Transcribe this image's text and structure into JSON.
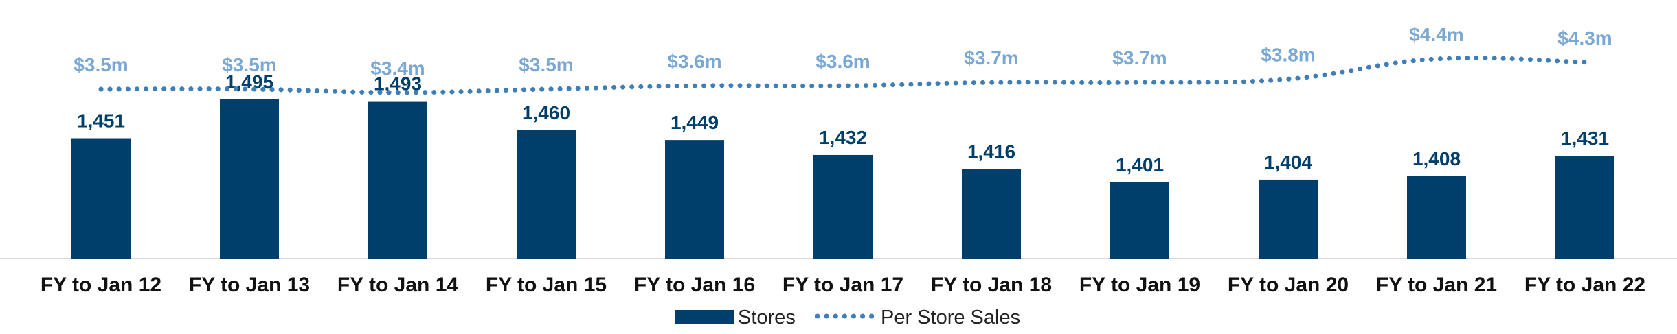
{
  "chart_data": {
    "type": "bar",
    "categories": [
      "FY to Jan 12",
      "FY to Jan 13",
      "FY to Jan 14",
      "FY to Jan 15",
      "FY to Jan 16",
      "FY to Jan 17",
      "FY to Jan 18",
      "FY to Jan 19",
      "FY to Jan 20",
      "FY to Jan 21",
      "FY to Jan 22"
    ],
    "series": [
      {
        "name": "Stores",
        "type": "bar",
        "values": [
          1451,
          1495,
          1493,
          1460,
          1449,
          1432,
          1416,
          1401,
          1404,
          1408,
          1431
        ],
        "labels": [
          "1,451",
          "1,495",
          "1,493",
          "1,460",
          "1,449",
          "1,432",
          "1,416",
          "1,401",
          "1,404",
          "1,408",
          "1,431"
        ],
        "color": "#003f6b"
      },
      {
        "name": "Per Store Sales",
        "type": "line",
        "style": "dotted",
        "values": [
          3.5,
          3.5,
          3.4,
          3.5,
          3.6,
          3.6,
          3.7,
          3.7,
          3.8,
          4.4,
          4.3
        ],
        "labels": [
          "$3.5m",
          "$3.5m",
          "$3.4m",
          "$3.5m",
          "$3.6m",
          "$3.6m",
          "$3.7m",
          "$3.7m",
          "$3.8m",
          "$4.4m",
          "$4.3m"
        ],
        "color": "#3f7fb8",
        "label_color": "#7aa8d4"
      }
    ],
    "legend": {
      "position": "bottom",
      "entries": [
        "Stores",
        "Per Store Sales"
      ]
    },
    "grid": false
  }
}
